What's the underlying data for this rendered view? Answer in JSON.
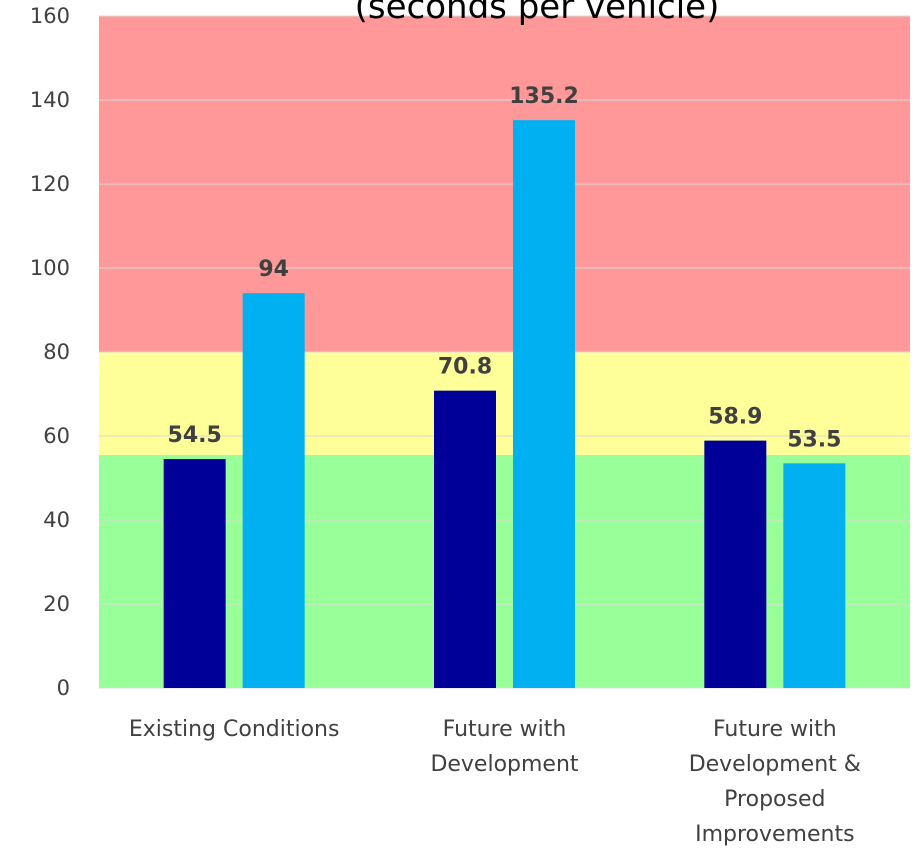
{
  "chart_data": {
    "type": "bar",
    "title_partial": "(seconds per vehicle)",
    "categories": [
      [
        "Existing Conditions"
      ],
      [
        "Future with",
        "Development"
      ],
      [
        "Future with",
        "Development &",
        "Proposed",
        "Improvements"
      ]
    ],
    "series": [
      {
        "values": [
          54.5,
          70.8,
          58.9
        ],
        "color": "#000099"
      },
      {
        "values": [
          94,
          135.2,
          53.5
        ],
        "color": "#00B0F0"
      }
    ],
    "data_labels": [
      [
        "54.5",
        "70.8",
        "58.9"
      ],
      [
        "94",
        "135.2",
        "53.5"
      ]
    ],
    "ylim": [
      0,
      160
    ],
    "yticks": [
      0,
      20,
      40,
      60,
      80,
      100,
      120,
      140,
      160
    ],
    "bands": [
      {
        "from": 0,
        "to": 55.5,
        "color": "#99FF99"
      },
      {
        "from": 55.5,
        "to": 80,
        "color": "#FFFF99"
      },
      {
        "from": 80,
        "to": 160,
        "color": "#FF9999"
      }
    ],
    "grid": true,
    "legend": "none"
  }
}
